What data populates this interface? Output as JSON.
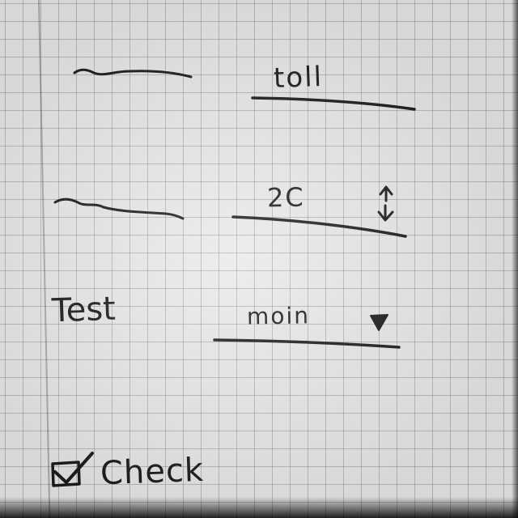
{
  "form": {
    "row1": {
      "label": "",
      "value": "toll"
    },
    "row2": {
      "label": "",
      "value": "2C"
    },
    "row3": {
      "label": "Test",
      "value": "moin"
    },
    "checkbox": {
      "label": "Check",
      "checked": true
    }
  },
  "icons": {
    "stepper": "up-down-arrows-icon",
    "dropdown": "triangle-down-icon",
    "checkbox": "checkmark-icon"
  },
  "colors": {
    "paper": "#e9e9e9",
    "ink": "#1b1b1b",
    "grid": "#8a8a8a"
  }
}
